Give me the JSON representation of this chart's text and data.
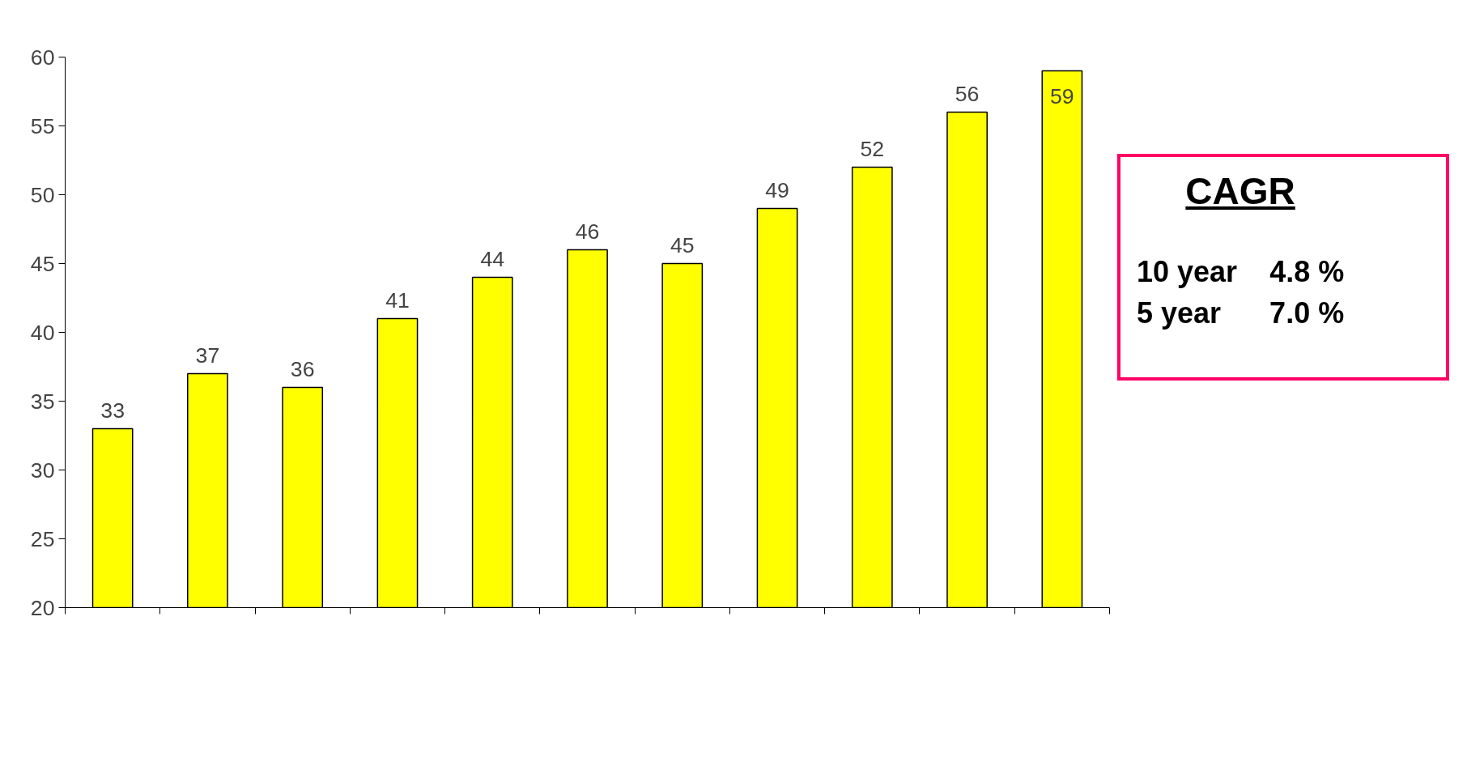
{
  "chart_data": {
    "type": "bar",
    "categories": [
      null,
      null,
      null,
      null,
      null,
      null,
      null,
      null,
      null,
      null,
      null
    ],
    "values": [
      33,
      37,
      36,
      41,
      44,
      46,
      45,
      49,
      52,
      56,
      59
    ],
    "color": "#ffff00",
    "ylim": [
      20,
      60
    ],
    "yticks": [
      20,
      25,
      30,
      35,
      40,
      45,
      50,
      55,
      60
    ],
    "grid": false,
    "data_labels": true,
    "tick_labels": "y",
    "annotations": [
      "CAGR",
      "10 year    4.8 %",
      "5 year      7.0 %"
    ]
  }
}
